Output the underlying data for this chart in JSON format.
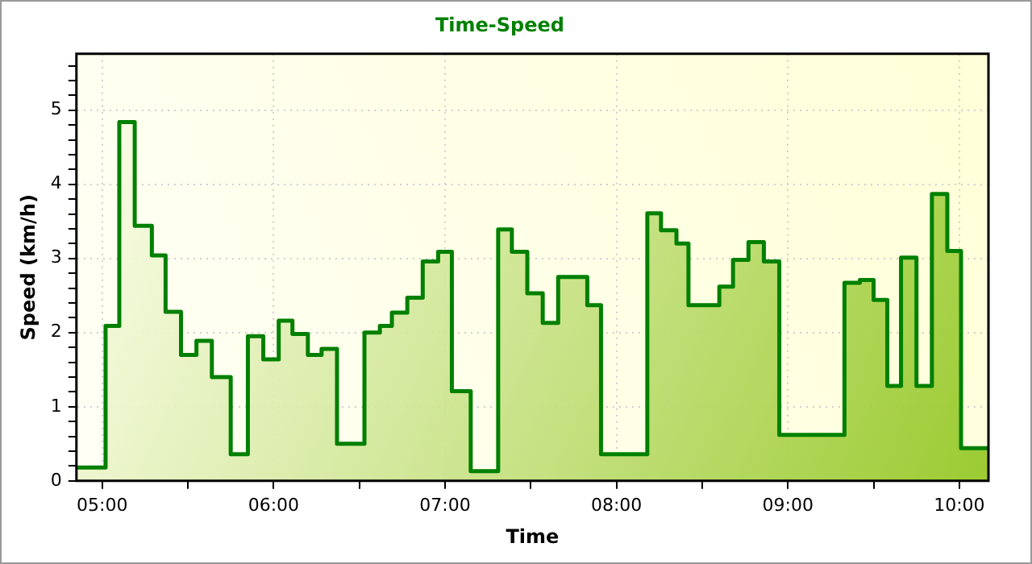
{
  "chart_data": {
    "type": "area",
    "title": "Time-Speed",
    "xlabel": "Time",
    "ylabel": "Speed (km/h)",
    "x": [
      4.85,
      5.02,
      5.02,
      5.1,
      5.1,
      5.19,
      5.19,
      5.29,
      5.29,
      5.37,
      5.37,
      5.46,
      5.46,
      5.55,
      5.55,
      5.64,
      5.64,
      5.75,
      5.75,
      5.85,
      5.85,
      5.94,
      5.94,
      6.03,
      6.03,
      6.11,
      6.11,
      6.2,
      6.2,
      6.28,
      6.28,
      6.37,
      6.37,
      6.53,
      6.53,
      6.62,
      6.62,
      6.69,
      6.69,
      6.78,
      6.78,
      6.87,
      6.87,
      6.96,
      6.96,
      7.04,
      7.04,
      7.15,
      7.15,
      7.31,
      7.31,
      7.39,
      7.39,
      7.48,
      7.48,
      7.57,
      7.57,
      7.66,
      7.66,
      7.83,
      7.83,
      7.91,
      7.91,
      8.18,
      8.18,
      8.26,
      8.26,
      8.35,
      8.35,
      8.42,
      8.42,
      8.6,
      8.6,
      8.68,
      8.68,
      8.77,
      8.77,
      8.86,
      8.86,
      8.95,
      8.95,
      9.33,
      9.33,
      9.42,
      9.42,
      9.5,
      9.5,
      9.58,
      9.58,
      9.66,
      9.66,
      9.75,
      9.75,
      9.84,
      9.84,
      9.93,
      9.93,
      10.01,
      10.01,
      10.17
    ],
    "series": [
      {
        "color": "#008000",
        "values": [
          0.18,
          0.18,
          2.09,
          2.09,
          4.84,
          4.84,
          3.44,
          3.44,
          3.04,
          3.04,
          2.28,
          2.28,
          1.7,
          1.7,
          1.89,
          1.89,
          1.4,
          1.4,
          0.36,
          0.36,
          1.95,
          1.95,
          1.64,
          1.64,
          2.16,
          2.16,
          1.98,
          1.98,
          1.7,
          1.7,
          1.78,
          1.78,
          0.5,
          0.5,
          2.0,
          2.0,
          2.09,
          2.09,
          2.27,
          2.27,
          2.47,
          2.47,
          2.96,
          2.96,
          3.09,
          3.09,
          1.21,
          1.21,
          0.13,
          0.13,
          3.39,
          3.39,
          3.09,
          3.09,
          2.53,
          2.53,
          2.13,
          2.13,
          2.75,
          2.75,
          2.37,
          2.37,
          0.36,
          0.36,
          3.61,
          3.61,
          3.38,
          3.38,
          3.2,
          3.2,
          2.37,
          2.37,
          2.62,
          2.62,
          2.98,
          2.98,
          3.22,
          3.22,
          2.96,
          2.96,
          0.62,
          0.62,
          2.67,
          2.67,
          2.71,
          2.71,
          2.44,
          2.44,
          1.28,
          1.28,
          3.01,
          3.01,
          1.28,
          1.28,
          3.87,
          3.87,
          3.1,
          3.1,
          0.44,
          0.44
        ]
      }
    ],
    "xlim": [
      4.85,
      10.17
    ],
    "xticks": [
      {
        "value": 5,
        "label": "05:00"
      },
      {
        "value": 5.5,
        "label": null
      },
      {
        "value": 6,
        "label": "06:00"
      },
      {
        "value": 6.5,
        "label": null
      },
      {
        "value": 7,
        "label": "07:00"
      },
      {
        "value": 7.5,
        "label": null
      },
      {
        "value": 8,
        "label": "08:00"
      },
      {
        "value": 8.5,
        "label": null
      },
      {
        "value": 9,
        "label": "09:00"
      },
      {
        "value": 9.5,
        "label": null
      },
      {
        "value": 10,
        "label": "10:00"
      }
    ],
    "ylim": [
      0,
      5.76
    ],
    "yticks": [
      0,
      {
        "value": 0.2,
        "label": null
      },
      {
        "value": 0.4,
        "label": null
      },
      {
        "value": 0.6,
        "label": null
      },
      {
        "value": 0.8,
        "label": null
      },
      1,
      {
        "value": 1.2,
        "label": null
      },
      {
        "value": 1.4,
        "label": null
      },
      {
        "value": 1.6,
        "label": null
      },
      {
        "value": 1.8,
        "label": null
      },
      2,
      {
        "value": 2.2,
        "label": null
      },
      {
        "value": 2.4,
        "label": null
      },
      {
        "value": 2.6,
        "label": null
      },
      {
        "value": 2.8,
        "label": null
      },
      3,
      {
        "value": 3.2,
        "label": null
      },
      {
        "value": 3.4,
        "label": null
      },
      {
        "value": 3.6,
        "label": null
      },
      {
        "value": 3.8,
        "label": null
      },
      4,
      {
        "value": 4.2,
        "label": null
      },
      {
        "value": 4.4,
        "label": null
      },
      {
        "value": 4.6,
        "label": null
      },
      {
        "value": 4.8,
        "label": null
      },
      5,
      {
        "value": 5.2,
        "label": null
      },
      {
        "value": 5.4,
        "label": null
      },
      {
        "value": 5.6,
        "label": null
      }
    ],
    "grid": true,
    "legend": false,
    "marker": "none",
    "line_style": "solid"
  }
}
